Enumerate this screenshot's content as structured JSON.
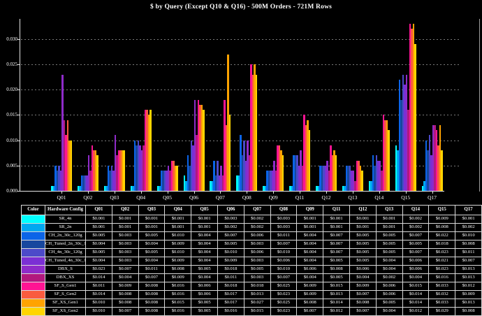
{
  "title": "$ by Query (Except Q10 & Q16) - 500M Orders - 721M Rows",
  "chart_data": {
    "type": "bar",
    "title": "$ by Query (Except Q10 & Q16) - 500M Orders - 721M Rows",
    "categories": [
      "Q01",
      "Q02",
      "Q03",
      "Q04",
      "Q05",
      "Q06",
      "Q07",
      "Q08",
      "Q09",
      "Q11",
      "Q12",
      "Q13",
      "Q14",
      "Q15",
      "Q17"
    ],
    "series": [
      {
        "name": "SR_4n",
        "color": "#00FFFF",
        "values": [
          0.001,
          0.001,
          0.001,
          0.001,
          0.001,
          0.003,
          0.002,
          0.003,
          0.001,
          0.001,
          0.001,
          0.001,
          0.002,
          0.009,
          0.001
        ]
      },
      {
        "name": "SR_2n",
        "color": "#00A8F0",
        "values": [
          0.001,
          0.001,
          0.001,
          0.001,
          0.001,
          0.002,
          0.002,
          0.003,
          0.001,
          0.001,
          0.001,
          0.001,
          0.002,
          0.008,
          0.002
        ]
      },
      {
        "name": "CH_2n_30c_120g",
        "color": "#0B64E8",
        "values": [
          0.005,
          0.003,
          0.005,
          0.01,
          0.004,
          0.007,
          0.006,
          0.011,
          0.004,
          0.007,
          0.005,
          0.005,
          0.007,
          0.022,
          0.01
        ]
      },
      {
        "name": "CH_Tuned_2n_30c_120g",
        "color": "#17479E",
        "values": [
          0.004,
          0.003,
          0.004,
          0.009,
          0.004,
          0.005,
          0.003,
          0.007,
          0.004,
          0.007,
          0.005,
          0.005,
          0.005,
          0.018,
          0.008
        ]
      },
      {
        "name": "CH_4n_30c_120g",
        "color": "#4C4AC9",
        "values": [
          0.005,
          0.003,
          0.005,
          0.01,
          0.004,
          0.01,
          0.006,
          0.01,
          0.004,
          0.007,
          0.005,
          0.005,
          0.007,
          0.023,
          0.011
        ]
      },
      {
        "name": "CH_Tuned_4n_30c_120g",
        "color": "#7B2FD4",
        "values": [
          0.004,
          0.003,
          0.004,
          0.009,
          0.004,
          0.009,
          0.003,
          0.006,
          0.004,
          0.005,
          0.005,
          0.004,
          0.006,
          0.021,
          0.007
        ]
      },
      {
        "name": "DBX_S",
        "color": "#8F2BC9",
        "values": [
          0.023,
          0.007,
          0.011,
          0.008,
          0.005,
          0.018,
          0.005,
          0.01,
          0.006,
          0.008,
          0.006,
          0.004,
          0.006,
          0.023,
          0.013
        ]
      },
      {
        "name": "DBX_XS",
        "color": "#B2187E",
        "values": [
          0.014,
          0.004,
          0.007,
          0.009,
          0.004,
          0.011,
          0.003,
          0.007,
          0.004,
          0.005,
          0.004,
          0.002,
          0.004,
          0.016,
          0.013
        ]
      },
      {
        "name": "SF_S_Gen1",
        "color": "#FF1493",
        "values": [
          0.011,
          0.009,
          0.008,
          0.016,
          0.006,
          0.018,
          0.018,
          0.025,
          0.009,
          0.015,
          0.009,
          0.006,
          0.015,
          0.033,
          0.012
        ]
      },
      {
        "name": "SF_S_Gen2",
        "color": "#F95B3F",
        "values": [
          0.014,
          0.008,
          0.008,
          0.016,
          0.006,
          0.017,
          0.013,
          0.023,
          0.009,
          0.013,
          0.007,
          0.006,
          0.014,
          0.032,
          0.009
        ]
      },
      {
        "name": "SF_XS_Gen1",
        "color": "#FFA300",
        "values": [
          0.01,
          0.008,
          0.008,
          0.015,
          0.005,
          0.017,
          0.027,
          0.025,
          0.008,
          0.014,
          0.008,
          0.005,
          0.014,
          0.033,
          0.013
        ]
      },
      {
        "name": "SF_XS_Gen2",
        "color": "#FFD500",
        "values": [
          0.01,
          0.007,
          0.008,
          0.016,
          0.005,
          0.016,
          0.015,
          0.023,
          0.007,
          0.012,
          0.007,
          0.004,
          0.012,
          0.029,
          0.008
        ]
      }
    ],
    "ylim": [
      0,
      0.034
    ],
    "yticks": [
      "0.000",
      "0.005",
      "0.010",
      "0.015",
      "0.020",
      "0.025",
      "0.030"
    ],
    "grid": "horizontal-dashed",
    "legend_position": "table-below"
  },
  "table": {
    "headers": [
      "Color",
      "Hardware Config",
      "Q01",
      "Q02",
      "Q03",
      "Q04",
      "Q05",
      "Q06",
      "Q07",
      "Q08",
      "Q09",
      "Q11",
      "Q12",
      "Q13",
      "Q14",
      "Q15",
      "Q17"
    ],
    "value_format": "$0.000"
  }
}
